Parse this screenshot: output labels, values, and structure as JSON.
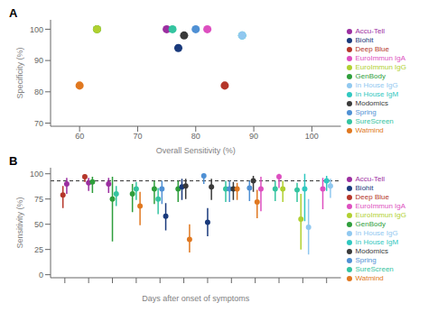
{
  "chart_data": [
    {
      "type": "scatter",
      "title": "A",
      "x_label": "Overall Sensitivity (%)",
      "y_label": "Specificity (%)",
      "xlim": [
        55,
        105
      ],
      "ylim": [
        69,
        103
      ],
      "xticks": [
        60,
        70,
        80,
        90,
        100
      ],
      "yticks": [
        70,
        80,
        90,
        100
      ],
      "grid": false,
      "legend": "right",
      "series": [
        {
          "name": "Deep Blue",
          "color": "#b5362a",
          "x": [
            85
          ],
          "values": [
            82
          ]
        },
        {
          "name": "Accu-Tell",
          "color": "#9b2ea0",
          "x": [
            75
          ],
          "values": [
            100
          ]
        },
        {
          "name": "GenBody",
          "color": "#2e9e3b",
          "x": [
            63
          ],
          "values": [
            100
          ]
        },
        {
          "name": "SureScreen",
          "color": "#34c4a0",
          "x": [
            76
          ],
          "values": [
            100
          ]
        },
        {
          "name": "Spring",
          "color": "#4f90d4",
          "x": [
            80
          ],
          "values": [
            100
          ]
        },
        {
          "name": "Biohit",
          "color": "#1a3a7c",
          "x": [
            77
          ],
          "values": [
            94
          ]
        },
        {
          "name": "Modomics",
          "color": "#3a3a3a",
          "x": [
            78
          ],
          "values": [
            98
          ]
        },
        {
          "name": "Watmind",
          "color": "#e07820",
          "x": [
            60
          ],
          "values": [
            82
          ]
        },
        {
          "name": "EuroImmun IgA",
          "color": "#dd4fc0",
          "x": [
            82
          ],
          "values": [
            100
          ]
        },
        {
          "name": "EuroImmun IgG",
          "color": "#b0d030",
          "x": [
            63
          ],
          "values": [
            100
          ]
        },
        {
          "name": "In House IgM",
          "color": "#30c8c0",
          "x": [
            88
          ],
          "values": [
            98
          ]
        },
        {
          "name": "In House IgG",
          "color": "#90c8f0",
          "x": [
            88
          ],
          "values": [
            98
          ]
        }
      ]
    },
    {
      "type": "scatter",
      "title": "B",
      "x_label": "Days after onset of symptoms",
      "y_label": "Sensitivity (%)",
      "categories": [
        null,
        null,
        null,
        null,
        null,
        null,
        null,
        null,
        null,
        null,
        null,
        null
      ],
      "tick_labels": "y",
      "ylim": [
        -3,
        106
      ],
      "yticks": [
        0,
        25,
        50,
        75,
        100
      ],
      "grid": false,
      "legend": "right",
      "reference_lines": [
        {
          "y": 93,
          "line_style": "dashed"
        }
      ],
      "series": [
        {
          "name": "Deep Blue",
          "color": "#b5362a",
          "values": [
            79,
            97,
            null,
            null,
            null,
            null,
            null,
            null,
            null,
            null,
            null,
            null
          ],
          "lows": [
            66,
            92,
            null,
            null,
            null,
            null,
            null,
            null,
            null,
            null,
            null,
            null
          ],
          "highs": [
            88,
            99,
            null,
            null,
            null,
            null,
            null,
            null,
            null,
            null,
            null,
            null
          ]
        },
        {
          "name": "Accu-Tell",
          "color": "#9b2ea0",
          "values": [
            90,
            91,
            90,
            null,
            null,
            null,
            null,
            null,
            null,
            null,
            null,
            null
          ],
          "lows": [
            80,
            83,
            81,
            null,
            null,
            null,
            null,
            null,
            null,
            null,
            null,
            null
          ],
          "highs": [
            96,
            96,
            96,
            null,
            null,
            null,
            null,
            null,
            null,
            null,
            null,
            null
          ]
        },
        {
          "name": "GenBody",
          "color": "#2e9e3b",
          "values": [
            null,
            92,
            75,
            80,
            85,
            85,
            null,
            null,
            null,
            null,
            null,
            null
          ],
          "lows": [
            null,
            81,
            33,
            62,
            70,
            72,
            null,
            null,
            null,
            null,
            null,
            null
          ],
          "highs": [
            null,
            97,
            97,
            90,
            93,
            93,
            null,
            null,
            null,
            null,
            null,
            null
          ]
        },
        {
          "name": "SureScreen",
          "color": "#34c4a0",
          "values": [
            null,
            null,
            80,
            85,
            75,
            null,
            null,
            85,
            null,
            85,
            84,
            null
          ],
          "lows": [
            null,
            null,
            68,
            74,
            60,
            null,
            null,
            72,
            null,
            73,
            72,
            null
          ],
          "highs": [
            null,
            null,
            88,
            92,
            86,
            null,
            null,
            93,
            null,
            93,
            91,
            null
          ]
        },
        {
          "name": "Spring",
          "color": "#4f90d4",
          "values": [
            null,
            null,
            null,
            null,
            85,
            null,
            98,
            85,
            86,
            null,
            null,
            null
          ],
          "lows": [
            null,
            null,
            null,
            null,
            70,
            null,
            90,
            72,
            73,
            null,
            null,
            null
          ],
          "highs": [
            null,
            null,
            null,
            null,
            93,
            null,
            100,
            93,
            93,
            null,
            null,
            null
          ]
        },
        {
          "name": "Biohit",
          "color": "#1a3a7c",
          "values": [
            null,
            null,
            null,
            null,
            58,
            87,
            52,
            null,
            null,
            null,
            null,
            null
          ],
          "lows": [
            null,
            null,
            null,
            null,
            44,
            74,
            38,
            null,
            null,
            null,
            null,
            null
          ],
          "highs": [
            null,
            null,
            null,
            null,
            71,
            95,
            66,
            null,
            null,
            null,
            null,
            null
          ]
        },
        {
          "name": "Modomics",
          "color": "#3a3a3a",
          "values": [
            null,
            null,
            null,
            null,
            null,
            88,
            87,
            85,
            93,
            null,
            null,
            null
          ],
          "lows": [
            null,
            null,
            null,
            null,
            null,
            75,
            74,
            74,
            82,
            null,
            null,
            null
          ],
          "highs": [
            null,
            null,
            null,
            null,
            null,
            95,
            95,
            92,
            98,
            null,
            null,
            null
          ]
        },
        {
          "name": "Watmind",
          "color": "#e07820",
          "values": [
            null,
            null,
            null,
            68,
            null,
            35,
            null,
            85,
            72,
            null,
            null,
            null
          ],
          "lows": [
            null,
            null,
            null,
            49,
            null,
            22,
            null,
            74,
            56,
            null,
            null,
            null
          ],
          "highs": [
            null,
            null,
            null,
            82,
            null,
            50,
            null,
            91,
            84,
            null,
            null,
            null
          ]
        },
        {
          "name": "EuroImmun IgA",
          "color": "#dd4fc0",
          "values": [
            null,
            null,
            null,
            null,
            null,
            null,
            null,
            null,
            85,
            97,
            null,
            85
          ],
          "lows": [
            null,
            null,
            null,
            null,
            null,
            null,
            null,
            null,
            63,
            86,
            null,
            65
          ],
          "highs": [
            null,
            null,
            null,
            null,
            null,
            null,
            null,
            null,
            97,
            100,
            null,
            96
          ]
        },
        {
          "name": "EuroImmun IgG",
          "color": "#b0d030",
          "values": [
            null,
            null,
            null,
            null,
            null,
            null,
            null,
            null,
            null,
            85,
            55,
            null
          ],
          "lows": [
            null,
            null,
            null,
            null,
            null,
            null,
            null,
            null,
            null,
            72,
            25,
            null
          ],
          "highs": [
            null,
            null,
            null,
            null,
            null,
            null,
            null,
            null,
            null,
            93,
            80,
            null
          ]
        },
        {
          "name": "In House IgM",
          "color": "#30c8c0",
          "values": [
            null,
            null,
            null,
            null,
            null,
            null,
            null,
            null,
            null,
            null,
            85,
            93
          ],
          "lows": [
            null,
            null,
            null,
            null,
            null,
            null,
            null,
            null,
            null,
            null,
            53,
            83
          ],
          "highs": [
            null,
            null,
            null,
            null,
            null,
            null,
            null,
            null,
            null,
            null,
            100,
            98
          ]
        },
        {
          "name": "In House IgG",
          "color": "#90c8f0",
          "values": [
            null,
            null,
            null,
            null,
            null,
            null,
            null,
            null,
            null,
            null,
            47,
            88
          ],
          "lows": [
            null,
            null,
            null,
            null,
            null,
            null,
            null,
            null,
            null,
            null,
            20,
            76
          ],
          "highs": [
            null,
            null,
            null,
            null,
            null,
            null,
            null,
            null,
            null,
            null,
            75,
            95
          ]
        }
      ]
    }
  ]
}
